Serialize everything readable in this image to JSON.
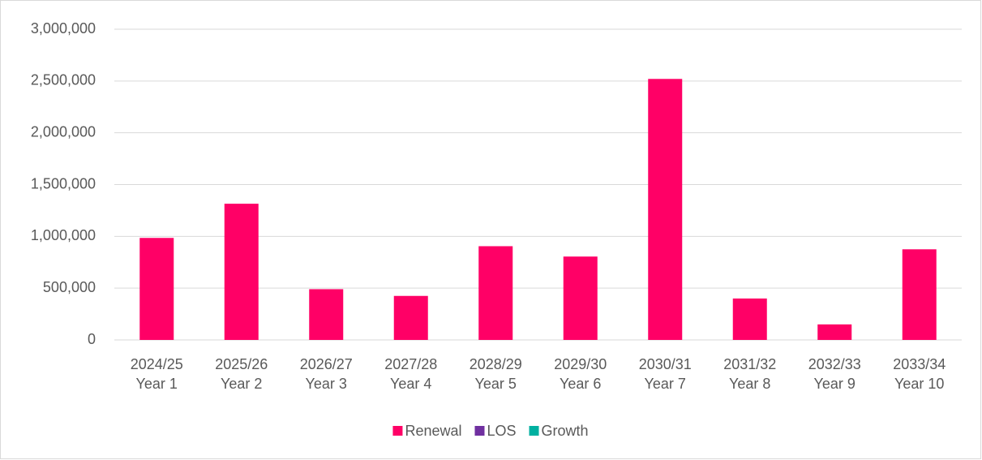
{
  "chart_data": {
    "type": "stacked_bar",
    "categories": [
      [
        "2024/25",
        "Year 1"
      ],
      [
        "2025/26",
        "Year 2"
      ],
      [
        "2026/27",
        "Year 3"
      ],
      [
        "2027/28",
        "Year 4"
      ],
      [
        "2028/29",
        "Year 5"
      ],
      [
        "2029/30",
        "Year 6"
      ],
      [
        "2030/31",
        "Year 7"
      ],
      [
        "2031/32",
        "Year 8"
      ],
      [
        "2032/33",
        "Year 9"
      ],
      [
        "2033/34",
        "Year 10"
      ]
    ],
    "series": [
      {
        "name": "Renewal",
        "color": "#ff0066",
        "values": [
          985000,
          1315000,
          490000,
          425000,
          905000,
          805000,
          2520000,
          400000,
          150000,
          875000
        ]
      },
      {
        "name": "LOS",
        "color": "#7030a0",
        "values": [
          0,
          0,
          0,
          0,
          0,
          0,
          0,
          0,
          0,
          0
        ]
      },
      {
        "name": "Growth",
        "color": "#00b0a0",
        "values": [
          0,
          0,
          0,
          0,
          0,
          0,
          0,
          0,
          0,
          0
        ]
      }
    ],
    "ylim": [
      0,
      3000000
    ],
    "yticks": [
      0,
      {
        "value": 500000,
        "label": "500,000"
      },
      {
        "value": 1000000,
        "label": "1,000,000"
      },
      {
        "value": 1500000,
        "label": "1,500,000"
      },
      {
        "value": 2000000,
        "label": "2,000,000"
      },
      {
        "value": 2500000,
        "label": "2,500,000"
      },
      {
        "value": 3000000,
        "label": "3,000,000"
      }
    ],
    "grid": true,
    "legend": "bottom"
  }
}
